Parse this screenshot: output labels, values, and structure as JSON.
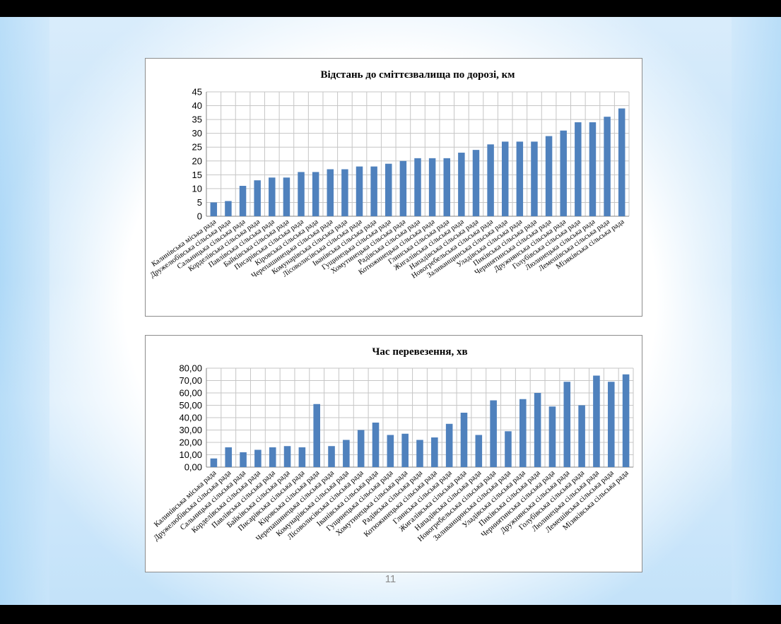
{
  "slide": {
    "page_number": "11",
    "colors": {
      "bar": "#4f81bd",
      "grid": "#c6c6c6",
      "frame": "#8c8c8c"
    }
  },
  "chart_data": [
    {
      "type": "bar",
      "title": "Відстань до сміттєзвалища по дорозі, км",
      "xlabel": "",
      "ylabel": "",
      "ylim": [
        0,
        45
      ],
      "ytick_step": 5,
      "yticks": [
        "0",
        "5",
        "10",
        "15",
        "20",
        "25",
        "30",
        "35",
        "40",
        "45"
      ],
      "grid": "both",
      "legend": "none",
      "categories": [
        "Калинівська міська рада",
        "Дружелюбівська сільська рада",
        "Сальницька сільська рада",
        "Корделівська сільська рада",
        "Павлівська сільська рада",
        "Байківська сільська рада",
        "Писарівська сільська рада",
        "Кіровська сільська рада",
        "Черепашинецька сільська рада",
        "Комунарівська сільська рада",
        "Лісоволисівська сільська рада",
        "Іванівська сільська рада",
        "Гущинецька сільська рада",
        "Хомутинецька сільська рада",
        "Радівська сільська рада",
        "Котюжинецька сільська рада",
        "Глинська сільська рада",
        "Жигалівська сільська рада",
        "Нападівська сільська рада",
        "Новогребельська сільська рада",
        "Заливанщинська сільська рада",
        "Уладівська сільська рада",
        "Пиківська сільська рада",
        "Черниятинська сільська рада",
        "Дружнянська сільська рада",
        "Голубівська сільська рада",
        "Люлинецька сільська рада",
        "Лемешівська сільська рада",
        "Мізяківська сільська рада"
      ],
      "values": [
        5,
        5.5,
        11,
        13,
        14,
        14,
        16,
        16,
        17,
        17,
        18,
        18,
        19,
        20,
        21,
        21,
        21,
        23,
        24,
        26,
        27,
        27,
        27,
        29,
        31,
        34,
        34,
        36,
        39
      ]
    },
    {
      "type": "bar",
      "title": "Час перевезення, хв",
      "xlabel": "",
      "ylabel": "",
      "ylim": [
        0,
        80
      ],
      "ytick_step": 10,
      "yticks": [
        "0,00",
        "10,00",
        "20,00",
        "30,00",
        "40,00",
        "50,00",
        "60,00",
        "70,00",
        "80,00"
      ],
      "grid": "both",
      "legend": "none",
      "categories": [
        "Калинівська міська рада",
        "Дружелюбівська сільська рада",
        "Сальницька сільська рада",
        "Корделівська сільська рада",
        "Павлівська сільська рада",
        "Байківська сільська рада",
        "Писарівська сільська рада",
        "Кіровська сільська рада",
        "Черепашинецька сільська рада",
        "Комунарівська сільська рада",
        "Лісоволисівська сільська рада",
        "Іванівська сільська рада",
        "Гущинецька сільська рада",
        "Хомутинецька сільська рада",
        "Радівська сільська рада",
        "Котюжинецька сільська рада",
        "Глинська сільська рада",
        "Жигалівська сільська рада",
        "Нападівська сільська рада",
        "Новогребельська сільська рада",
        "Заливанщинська сільська рада",
        "Уладівська сільська рада",
        "Пиківська сільська рада",
        "Черниятинська сільська рада",
        "Дружнянська сільська рада",
        "Голубівська сільська рада",
        "Люлинецька сільська рада",
        "Лемешівська сільська рада",
        "Мізяківська сільська рада"
      ],
      "values": [
        7,
        16,
        12,
        14,
        16,
        17,
        16,
        51,
        17,
        22,
        30,
        36,
        26,
        27,
        22,
        24,
        35,
        44,
        26,
        54,
        29,
        55,
        60,
        49,
        69,
        50,
        74,
        69,
        75
      ]
    }
  ]
}
